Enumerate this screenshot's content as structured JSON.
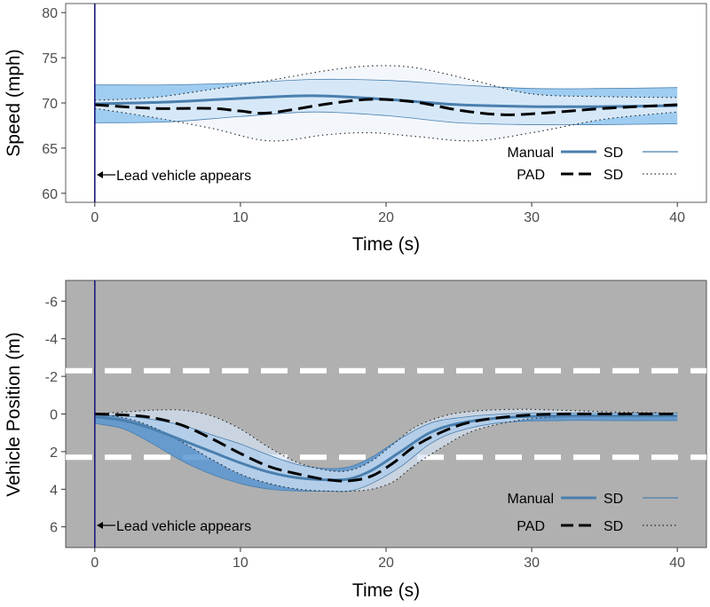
{
  "chart_data": [
    {
      "type": "line",
      "xlabel": "Time (s)",
      "ylabel": "Speed (mph)",
      "xlim": [
        -2,
        42
      ],
      "ylim": [
        59,
        81
      ],
      "x_ticks": [
        0,
        10,
        20,
        30,
        40
      ],
      "y_ticks": [
        60,
        65,
        70,
        75,
        80
      ],
      "y_tick_labels": [
        "60",
        "65",
        "70",
        "75",
        "80"
      ],
      "annotation": {
        "text": "Lead vehicle appears",
        "x": 0
      },
      "legend": {
        "position": "bottom-right",
        "entries": [
          {
            "label": "Manual",
            "sd_label": "SD"
          },
          {
            "label": "PAD",
            "sd_label": "SD"
          }
        ]
      },
      "series": [
        {
          "name": "Manual",
          "x": [
            0,
            5,
            10,
            15,
            20,
            25,
            30,
            35,
            40
          ],
          "values": [
            69.9,
            70.1,
            70.5,
            70.8,
            70.4,
            69.8,
            69.6,
            69.6,
            69.7
          ]
        },
        {
          "name": "Manual SD upper",
          "x": [
            0,
            5,
            10,
            15,
            20,
            25,
            30,
            35,
            40
          ],
          "values": [
            72.0,
            72.0,
            72.2,
            72.6,
            72.5,
            72.0,
            71.6,
            71.6,
            71.7
          ]
        },
        {
          "name": "Manual SD lower",
          "x": [
            0,
            5,
            10,
            15,
            20,
            25,
            30,
            35,
            40
          ],
          "values": [
            67.8,
            67.9,
            68.5,
            69.0,
            68.6,
            67.8,
            67.6,
            67.6,
            67.7
          ]
        },
        {
          "name": "PAD",
          "x": [
            0,
            4,
            8,
            10,
            12,
            16,
            19,
            22,
            25,
            28,
            31,
            35,
            40
          ],
          "values": [
            69.8,
            69.4,
            69.4,
            69.1,
            68.9,
            69.9,
            70.4,
            70.1,
            69.2,
            68.7,
            68.9,
            69.4,
            69.8
          ]
        },
        {
          "name": "PAD SD upper",
          "x": [
            0,
            4,
            8,
            12,
            16,
            19,
            22,
            26,
            30,
            35,
            40
          ],
          "values": [
            70.3,
            70.6,
            71.5,
            72.5,
            73.6,
            74.1,
            73.9,
            72.5,
            71.0,
            70.7,
            70.6
          ]
        },
        {
          "name": "PAD SD lower",
          "x": [
            0,
            4,
            8,
            12,
            16,
            19,
            22,
            26,
            30,
            35,
            40
          ],
          "values": [
            69.4,
            68.4,
            67.2,
            65.8,
            66.5,
            66.7,
            66.3,
            65.8,
            66.7,
            68.2,
            69.0
          ]
        }
      ]
    },
    {
      "type": "line",
      "xlabel": "Time (s)",
      "ylabel": "Vehicle Position (m)",
      "xlim": [
        -2,
        42
      ],
      "ylim": [
        7.1,
        -7.1
      ],
      "x_ticks": [
        0,
        10,
        20,
        30,
        40
      ],
      "y_ticks": [
        -6,
        -4,
        -2,
        0,
        2,
        4,
        6
      ],
      "y_tick_labels": [
        "-6",
        "-4",
        "-2",
        "0",
        "2",
        "4",
        "6"
      ],
      "lane_lines": [
        -2.3,
        2.3
      ],
      "annotation": {
        "text": "Lead vehicle appears",
        "x": 0
      },
      "legend": {
        "position": "bottom-right",
        "entries": [
          {
            "label": "Manual",
            "sd_label": "SD"
          },
          {
            "label": "PAD",
            "sd_label": "SD"
          }
        ]
      },
      "series": [
        {
          "name": "Manual",
          "x": [
            0,
            2,
            4,
            6,
            8,
            10,
            12,
            14,
            16,
            17.5,
            19,
            21,
            23,
            25,
            28,
            32,
            36,
            40
          ],
          "values": [
            0.15,
            0.35,
            0.8,
            1.4,
            2.0,
            2.6,
            3.1,
            3.4,
            3.5,
            3.45,
            3.0,
            2.0,
            1.0,
            0.5,
            0.2,
            0.1,
            0.1,
            0.1
          ]
        },
        {
          "name": "Manual SD upper",
          "x": [
            0,
            2,
            4,
            6,
            8,
            10,
            12,
            14,
            16,
            17.5,
            19,
            21,
            23,
            25,
            28,
            32,
            36,
            40
          ],
          "values": [
            0.1,
            0.1,
            0.3,
            0.6,
            1.1,
            1.6,
            2.2,
            2.7,
            2.9,
            2.8,
            2.3,
            1.3,
            0.5,
            0.2,
            0.0,
            -0.05,
            -0.05,
            -0.05
          ]
        },
        {
          "name": "Manual SD lower",
          "x": [
            0,
            2,
            4,
            6,
            8,
            10,
            12,
            14,
            16,
            17.5,
            19,
            21,
            23,
            25,
            28,
            32,
            36,
            40
          ],
          "values": [
            0.5,
            0.8,
            1.6,
            2.5,
            3.2,
            3.7,
            4.0,
            4.1,
            4.1,
            4.1,
            3.7,
            2.8,
            1.6,
            0.9,
            0.45,
            0.35,
            0.35,
            0.35
          ]
        },
        {
          "name": "PAD",
          "x": [
            0,
            2,
            4,
            6,
            8,
            10,
            12,
            14,
            16,
            17.5,
            19,
            20.5,
            22,
            24,
            26,
            29,
            32,
            36,
            40
          ],
          "values": [
            0.0,
            0.05,
            0.2,
            0.6,
            1.3,
            2.1,
            2.8,
            3.2,
            3.5,
            3.55,
            3.3,
            2.6,
            1.7,
            0.9,
            0.4,
            0.1,
            0.0,
            0.0,
            0.0
          ]
        },
        {
          "name": "PAD SD upper",
          "x": [
            0,
            2,
            4,
            6,
            8,
            10,
            12,
            14,
            16,
            17.5,
            19,
            20.5,
            22,
            24,
            26,
            29,
            32,
            36,
            40
          ],
          "values": [
            0.0,
            -0.1,
            -0.2,
            -0.2,
            0.1,
            0.8,
            1.8,
            2.6,
            3.0,
            3.0,
            2.5,
            1.6,
            0.7,
            0.1,
            -0.15,
            -0.25,
            -0.2,
            -0.1,
            -0.05
          ]
        },
        {
          "name": "PAD SD lower",
          "x": [
            0,
            2,
            4,
            6,
            8,
            10,
            12,
            14,
            16,
            17.5,
            19,
            20.5,
            22,
            24,
            26,
            29,
            32,
            36,
            40
          ],
          "values": [
            0.0,
            0.2,
            0.7,
            1.5,
            2.4,
            3.2,
            3.7,
            4.0,
            4.1,
            4.1,
            4.0,
            3.6,
            2.7,
            1.7,
            0.9,
            0.35,
            0.15,
            0.1,
            0.05
          ]
        }
      ]
    }
  ]
}
